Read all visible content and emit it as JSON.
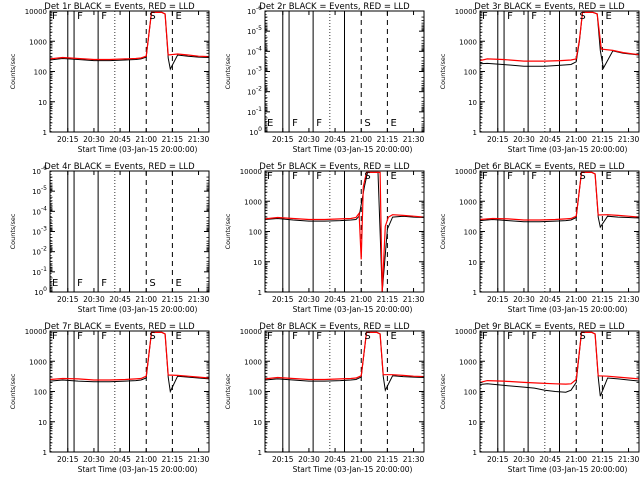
{
  "chart_data": [
    {
      "type": "line",
      "title": "Det 1r BLACK = Events, RED = LLD",
      "xlabel": "Start Time (03-Jan-15 20:00:00)",
      "ylabel": "Counts/sec",
      "yscale": "log",
      "ylim": [
        1,
        10000
      ],
      "xlim": [
        20.08,
        21.6
      ],
      "xticks": [
        20.25,
        20.5,
        20.75,
        21.0,
        21.25,
        21.5
      ],
      "xticklabels": [
        "20:15",
        "20:30",
        "20:45",
        "21:00",
        "21:15",
        "21:30"
      ],
      "yticks": [
        1,
        10,
        100,
        1000,
        10000
      ],
      "yticklabels": [
        "1",
        "10",
        "100",
        "1000",
        "10000"
      ],
      "annotations": [
        "F",
        "F",
        "F",
        "S",
        "E"
      ],
      "series": [
        {
          "color": "#000000",
          "x": [
            20.08,
            20.2,
            20.35,
            20.5,
            20.65,
            20.8,
            20.9,
            20.95,
            21.0,
            21.05,
            21.15,
            21.18,
            21.21,
            21.23,
            21.3,
            21.4,
            21.5,
            21.6
          ],
          "y": [
            240,
            270,
            250,
            230,
            230,
            240,
            250,
            260,
            300,
            9000,
            9000,
            8000,
            280,
            120,
            350,
            320,
            300,
            290
          ]
        },
        {
          "color": "#ff0000",
          "x": [
            20.08,
            20.2,
            20.35,
            20.5,
            20.65,
            20.8,
            20.9,
            20.95,
            21.0,
            21.05,
            21.15,
            21.18,
            21.21,
            21.3,
            21.4,
            21.5,
            21.6
          ],
          "y": [
            260,
            290,
            270,
            250,
            250,
            260,
            270,
            280,
            320,
            9000,
            9000,
            8000,
            350,
            380,
            350,
            320,
            310
          ]
        }
      ]
    },
    {
      "type": "line",
      "title": "Det 2r BLACK = Events, RED = LLD",
      "xlabel": "Start Time (03-Jan-15 20:00:00)",
      "ylabel": "Counts/sec",
      "yscale": "log",
      "ylim": [
        1,
        1e-06
      ],
      "xlim": [
        20.08,
        21.6
      ],
      "xticks": [
        20.25,
        20.5,
        20.75,
        21.0,
        21.25,
        21.5
      ],
      "xticklabels": [
        "20:15",
        "20:30",
        "20:45",
        "21:00",
        "21:15",
        "21:30"
      ],
      "yticks": [
        1,
        0.1,
        0.01,
        0.001,
        0.0001,
        1e-05,
        1e-06
      ],
      "yticklabels": [
        "10^0",
        "10^-1",
        "10^-2",
        "10^-3",
        "10^-4",
        "10^-5",
        "10^-6"
      ],
      "annotations": [
        "E",
        "F",
        "F",
        "S",
        "E"
      ],
      "series": []
    },
    {
      "type": "line",
      "title": "Det 3r BLACK = Events, RED = LLD",
      "xlabel": "Start Time (03-Jan-15 20:00:00)",
      "ylabel": "Counts/sec",
      "yscale": "log",
      "ylim": [
        1,
        10000
      ],
      "xlim": [
        20.08,
        21.6
      ],
      "xticks": [
        20.25,
        20.5,
        20.75,
        21.0,
        21.25,
        21.5
      ],
      "xticklabels": [
        "20:15",
        "20:30",
        "20:45",
        "21:00",
        "21:15",
        "21:30"
      ],
      "yticks": [
        1,
        10,
        100,
        1000,
        10000
      ],
      "yticklabels": [
        "1",
        "10",
        "100",
        "1000",
        "10000"
      ],
      "annotations": [
        "F",
        "F",
        "F",
        "S",
        "E"
      ],
      "series": [
        {
          "color": "#000000",
          "x": [
            20.08,
            20.15,
            20.3,
            20.5,
            20.7,
            20.85,
            20.95,
            21.0,
            21.03,
            21.06,
            21.16,
            21.2,
            21.23,
            21.26,
            21.35,
            21.45,
            21.6
          ],
          "y": [
            180,
            185,
            170,
            150,
            150,
            160,
            170,
            210,
            1000,
            9000,
            9000,
            8000,
            500,
            130,
            480,
            400,
            350
          ]
        },
        {
          "color": "#ff0000",
          "x": [
            20.08,
            20.15,
            20.3,
            20.5,
            20.7,
            20.85,
            20.95,
            21.0,
            21.03,
            21.06,
            21.16,
            21.2,
            21.24,
            21.35,
            21.45,
            21.6
          ],
          "y": [
            230,
            260,
            250,
            220,
            220,
            230,
            240,
            260,
            1100,
            9000,
            9000,
            8000,
            550,
            500,
            420,
            360
          ]
        }
      ]
    },
    {
      "type": "line",
      "title": "Det 4r BLACK = Events, RED = LLD",
      "xlabel": "Start Time (03-Jan-15 20:00:00)",
      "ylabel": "Counts/sec",
      "yscale": "log",
      "ylim": [
        1,
        1e-06
      ],
      "xlim": [
        20.08,
        21.6
      ],
      "xticks": [
        20.25,
        20.5,
        20.75,
        21.0,
        21.25,
        21.5
      ],
      "xticklabels": [
        "20:15",
        "20:30",
        "20:45",
        "21:00",
        "21:15",
        "21:30"
      ],
      "yticks": [
        1,
        0.1,
        0.01,
        0.001,
        0.0001,
        1e-05,
        1e-06
      ],
      "yticklabels": [
        "10^0",
        "10^-1",
        "10^-2",
        "10^-3",
        "10^-4",
        "10^-5",
        "10^-6"
      ],
      "annotations": [
        "E",
        "F",
        "F",
        "S",
        "E"
      ],
      "series": []
    },
    {
      "type": "line",
      "title": "Det 5r BLACK = Events, RED = LLD",
      "xlabel": "Start Time (03-Jan-15 20:00:00)",
      "ylabel": "Counts/sec",
      "yscale": "log",
      "ylim": [
        1,
        10000
      ],
      "xlim": [
        20.08,
        21.6
      ],
      "xticks": [
        20.25,
        20.5,
        20.75,
        21.0,
        21.25,
        21.5
      ],
      "xticklabels": [
        "20:15",
        "20:30",
        "20:45",
        "21:00",
        "21:15",
        "21:30"
      ],
      "yticks": [
        1,
        10,
        100,
        1000,
        10000
      ],
      "yticklabels": [
        "1",
        "10",
        "100",
        "1000",
        "10000"
      ],
      "annotations": [
        "F",
        "F",
        "F",
        "S",
        "E"
      ],
      "series": [
        {
          "color": "#000000",
          "x": [
            20.08,
            20.2,
            20.35,
            20.5,
            20.65,
            20.8,
            20.9,
            20.95,
            20.98,
            21.03,
            21.06,
            21.1,
            21.13,
            21.16,
            21.2,
            21.25,
            21.3,
            21.4,
            21.5,
            21.6
          ],
          "y": [
            250,
            270,
            240,
            220,
            220,
            230,
            240,
            250,
            320,
            3000,
            9000,
            9000,
            9000,
            9000,
            1,
            120,
            300,
            320,
            300,
            290
          ]
        },
        {
          "color": "#ff0000",
          "x": [
            20.08,
            20.2,
            20.35,
            20.5,
            20.65,
            20.8,
            20.9,
            20.95,
            20.98,
            21.0,
            21.02,
            21.05,
            21.08,
            21.12,
            21.15,
            21.18,
            21.2,
            21.23,
            21.26,
            21.3,
            21.4,
            21.5,
            21.6
          ],
          "y": [
            260,
            290,
            270,
            250,
            250,
            260,
            270,
            290,
            400,
            12,
            3000,
            9000,
            9000,
            9000,
            9000,
            9000,
            1,
            150,
            300,
            360,
            340,
            320,
            300
          ]
        }
      ]
    },
    {
      "type": "line",
      "title": "Det 6r BLACK = Events, RED = LLD",
      "xlabel": "Start Time (03-Jan-15 20:00:00)",
      "ylabel": "Counts/sec",
      "yscale": "log",
      "ylim": [
        1,
        10000
      ],
      "xlim": [
        20.08,
        21.6
      ],
      "xticks": [
        20.25,
        20.5,
        20.75,
        21.0,
        21.25,
        21.5
      ],
      "xticklabels": [
        "20:15",
        "20:30",
        "20:45",
        "21:00",
        "21:15",
        "21:30"
      ],
      "yticks": [
        1,
        10,
        100,
        1000,
        10000
      ],
      "yticklabels": [
        "1",
        "10",
        "100",
        "1000",
        "10000"
      ],
      "annotations": [
        "F",
        "F",
        "F",
        "S",
        "E"
      ],
      "series": [
        {
          "color": "#000000",
          "x": [
            20.08,
            20.2,
            20.35,
            20.5,
            20.65,
            20.8,
            20.9,
            20.95,
            21.0,
            21.05,
            21.15,
            21.18,
            21.21,
            21.23,
            21.3,
            21.4,
            21.5,
            21.6
          ],
          "y": [
            230,
            250,
            230,
            210,
            210,
            220,
            230,
            240,
            290,
            9000,
            9000,
            8000,
            300,
            140,
            320,
            300,
            290,
            280
          ]
        },
        {
          "color": "#ff0000",
          "x": [
            20.08,
            20.2,
            20.35,
            20.5,
            20.65,
            20.8,
            20.9,
            20.95,
            21.0,
            21.05,
            21.15,
            21.18,
            21.21,
            21.3,
            21.4,
            21.5,
            21.6
          ],
          "y": [
            250,
            270,
            260,
            240,
            240,
            250,
            260,
            270,
            320,
            9000,
            9000,
            8000,
            350,
            360,
            340,
            320,
            300
          ]
        }
      ]
    },
    {
      "type": "line",
      "title": "Det 7r BLACK = Events, RED = LLD",
      "xlabel": "Start Time (03-Jan-15 20:00:00)",
      "ylabel": "Counts/sec",
      "yscale": "log",
      "ylim": [
        1,
        10000
      ],
      "xlim": [
        20.08,
        21.6
      ],
      "xticks": [
        20.25,
        20.5,
        20.75,
        21.0,
        21.25,
        21.5
      ],
      "xticklabels": [
        "20:15",
        "20:30",
        "20:45",
        "21:00",
        "21:15",
        "21:30"
      ],
      "yticks": [
        1,
        10,
        100,
        1000,
        10000
      ],
      "yticklabels": [
        "1",
        "10",
        "100",
        "1000",
        "10000"
      ],
      "annotations": [
        "F",
        "F",
        "F",
        "S",
        "E"
      ],
      "series": [
        {
          "color": "#000000",
          "x": [
            20.08,
            20.2,
            20.35,
            20.5,
            20.65,
            20.8,
            20.9,
            20.95,
            21.0,
            21.05,
            21.15,
            21.18,
            21.21,
            21.23,
            21.3,
            21.4,
            21.5,
            21.6
          ],
          "y": [
            220,
            240,
            220,
            210,
            210,
            220,
            230,
            240,
            280,
            9000,
            9000,
            8000,
            300,
            100,
            320,
            300,
            280,
            260
          ]
        },
        {
          "color": "#ff0000",
          "x": [
            20.08,
            20.2,
            20.35,
            20.5,
            20.65,
            20.8,
            20.9,
            20.95,
            21.0,
            21.05,
            21.15,
            21.18,
            21.21,
            21.3,
            21.4,
            21.5,
            21.6
          ],
          "y": [
            250,
            270,
            260,
            240,
            240,
            250,
            260,
            270,
            320,
            9000,
            9000,
            8000,
            350,
            340,
            320,
            300,
            280
          ]
        }
      ]
    },
    {
      "type": "line",
      "title": "Det 8r BLACK = Events, RED = LLD",
      "xlabel": "Start Time (03-Jan-15 20:00:00)",
      "ylabel": "Counts/sec",
      "yscale": "log",
      "ylim": [
        1,
        10000
      ],
      "xlim": [
        20.08,
        21.6
      ],
      "xticks": [
        20.25,
        20.5,
        20.75,
        21.0,
        21.25,
        21.5
      ],
      "xticklabels": [
        "20:15",
        "20:30",
        "20:45",
        "21:00",
        "21:15",
        "21:30"
      ],
      "yticks": [
        1,
        10,
        100,
        1000,
        10000
      ],
      "yticklabels": [
        "1",
        "10",
        "100",
        "1000",
        "10000"
      ],
      "annotations": [
        "F",
        "F",
        "F",
        "S",
        "E"
      ],
      "series": [
        {
          "color": "#000000",
          "x": [
            20.08,
            20.2,
            20.35,
            20.5,
            20.65,
            20.8,
            20.9,
            20.95,
            21.0,
            21.05,
            21.15,
            21.18,
            21.21,
            21.23,
            21.3,
            21.4,
            21.5,
            21.6
          ],
          "y": [
            240,
            260,
            240,
            220,
            220,
            230,
            240,
            250,
            300,
            9000,
            9000,
            8000,
            320,
            110,
            330,
            310,
            300,
            290
          ]
        },
        {
          "color": "#ff0000",
          "x": [
            20.08,
            20.2,
            20.35,
            20.5,
            20.65,
            20.8,
            20.9,
            20.95,
            21.0,
            21.05,
            21.15,
            21.18,
            21.21,
            21.3,
            21.4,
            21.5,
            21.6
          ],
          "y": [
            260,
            290,
            270,
            250,
            250,
            260,
            270,
            280,
            330,
            9000,
            9000,
            8000,
            360,
            360,
            340,
            320,
            310
          ]
        }
      ]
    },
    {
      "type": "line",
      "title": "Det 9r BLACK = Events, RED = LLD",
      "xlabel": "Start Time (03-Jan-15 20:00:00)",
      "ylabel": "Counts/sec",
      "yscale": "log",
      "ylim": [
        1,
        10000
      ],
      "xlim": [
        20.08,
        21.6
      ],
      "xticks": [
        20.25,
        20.5,
        20.75,
        21.0,
        21.25,
        21.5
      ],
      "xticklabels": [
        "20:15",
        "20:30",
        "20:45",
        "21:00",
        "21:15",
        "21:30"
      ],
      "yticks": [
        1,
        10,
        100,
        1000,
        10000
      ],
      "yticklabels": [
        "1",
        "10",
        "100",
        "1000",
        "10000"
      ],
      "annotations": [
        "F",
        "F",
        "F",
        "S",
        "E"
      ],
      "series": [
        {
          "color": "#000000",
          "x": [
            20.08,
            20.15,
            20.3,
            20.5,
            20.6,
            20.7,
            20.8,
            20.9,
            20.95,
            21.0,
            21.05,
            21.15,
            21.18,
            21.21,
            21.23,
            21.3,
            21.4,
            21.5,
            21.6
          ],
          "y": [
            170,
            180,
            160,
            140,
            130,
            110,
            100,
            95,
            110,
            200,
            9000,
            9000,
            8000,
            300,
            70,
            280,
            260,
            240,
            220
          ]
        },
        {
          "color": "#ff0000",
          "x": [
            20.08,
            20.15,
            20.3,
            20.5,
            20.65,
            20.8,
            20.9,
            20.95,
            21.0,
            21.05,
            21.15,
            21.18,
            21.21,
            21.3,
            21.4,
            21.5,
            21.6
          ],
          "y": [
            200,
            230,
            220,
            200,
            190,
            180,
            175,
            180,
            250,
            9000,
            9000,
            8000,
            330,
            320,
            300,
            280,
            260
          ]
        }
      ]
    }
  ],
  "markers": {
    "solid_x": [
      20.25,
      20.31,
      20.54,
      20.84
    ],
    "dotted_x": [
      20.09,
      20.7
    ],
    "dashed_x": [
      21.0,
      21.25
    ],
    "label_x": [
      20.09,
      20.33,
      20.56,
      21.02,
      21.27
    ]
  }
}
